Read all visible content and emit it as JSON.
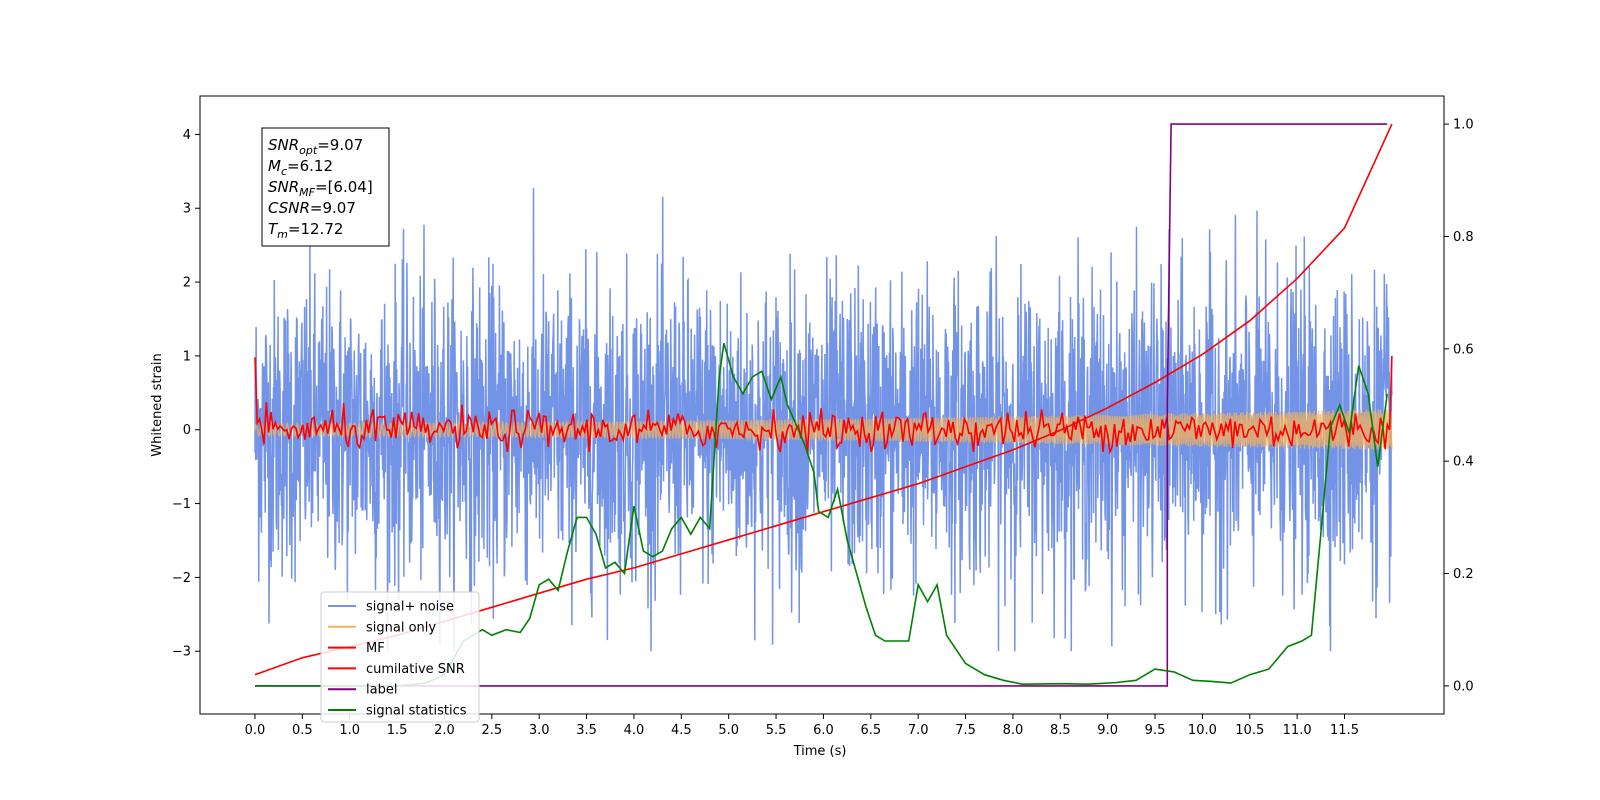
{
  "chart_data": {
    "type": "line",
    "xlabel": "Time (s)",
    "ylabel": "Whitened strain",
    "xlim": [
      -0.58,
      12.55
    ],
    "ylim": [
      -3.85,
      4.52
    ],
    "y2lim": [
      -0.05,
      1.05
    ],
    "grid": false,
    "legend_position": "lower-left",
    "x_ticks": [
      "0.0",
      "0.5",
      "1.0",
      "1.5",
      "2.0",
      "2.5",
      "3.0",
      "3.5",
      "4.0",
      "4.5",
      "5.0",
      "5.5",
      "6.0",
      "6.5",
      "7.0",
      "7.5",
      "8.0",
      "8.5",
      "9.0",
      "9.5",
      "10.0",
      "10.5",
      "11.0",
      "11.5"
    ],
    "y_ticks": [
      "4",
      "3",
      "2",
      "1",
      "0",
      "−1",
      "−2",
      "−3"
    ],
    "y2_ticks": [
      "1.0",
      "0.8",
      "0.6",
      "0.4",
      "0.2",
      "0.0"
    ],
    "annotation": {
      "lines": [
        {
          "base": "SNR",
          "sub": "opt",
          "value": "=9.07"
        },
        {
          "base": "M",
          "sub": "c",
          "value": "=6.12"
        },
        {
          "base": "SNR",
          "sub": "MF",
          "value": "=[6.04]"
        },
        {
          "base": "CSNR",
          "sub": "",
          "value": "=9.07"
        },
        {
          "base": "T",
          "sub": "m",
          "value": "=12.72"
        }
      ]
    },
    "series": [
      {
        "name": "signal+ noise",
        "color": "#7393e6",
        "axis": "left",
        "kind": "noise",
        "amplitude_range": [
          -3.0,
          4.15
        ],
        "duration": 12.0
      },
      {
        "name": "signal only",
        "color": "#f5b15a",
        "axis": "left",
        "kind": "chirp",
        "amplitude_start": 0.08,
        "amplitude_end": 0.28
      },
      {
        "name": "MF",
        "color": "#ff0000",
        "axis": "left",
        "kind": "mf",
        "start_value": 0.98,
        "end_value": 1.0,
        "range": [
          -0.3,
          0.5
        ]
      },
      {
        "name": "cumilative SNR",
        "color": "#ff0000",
        "axis": "right",
        "x": [
          0.0,
          0.5,
          1.0,
          1.5,
          2.0,
          2.5,
          3.0,
          3.5,
          4.0,
          4.5,
          5.0,
          5.5,
          6.0,
          6.5,
          7.0,
          7.5,
          8.0,
          8.5,
          9.0,
          9.5,
          10.0,
          10.5,
          11.0,
          11.5,
          12.0
        ],
        "values": [
          0.02,
          0.05,
          0.07,
          0.09,
          0.115,
          0.14,
          0.165,
          0.19,
          0.21,
          0.235,
          0.26,
          0.285,
          0.31,
          0.335,
          0.36,
          0.39,
          0.42,
          0.455,
          0.495,
          0.54,
          0.59,
          0.65,
          0.725,
          0.815,
          1.0
        ]
      },
      {
        "name": "label",
        "color": "#800080",
        "axis": "right",
        "x": [
          0.0,
          9.63,
          9.63,
          9.67,
          11.95
        ],
        "values": [
          0.0,
          0.0,
          0.5,
          1.0,
          1.0
        ]
      },
      {
        "name": "signal statistics",
        "color": "#008000",
        "axis": "right",
        "x": [
          0.0,
          1.5,
          1.8,
          2.0,
          2.2,
          2.4,
          2.5,
          2.65,
          2.8,
          2.9,
          3.0,
          3.1,
          3.2,
          3.3,
          3.4,
          3.5,
          3.6,
          3.7,
          3.8,
          3.9,
          4.0,
          4.1,
          4.2,
          4.3,
          4.4,
          4.5,
          4.6,
          4.7,
          4.8,
          4.9,
          4.95,
          5.05,
          5.15,
          5.25,
          5.35,
          5.45,
          5.55,
          5.62,
          5.7,
          5.8,
          5.9,
          5.95,
          6.05,
          6.15,
          6.25,
          6.35,
          6.45,
          6.55,
          6.65,
          6.8,
          6.9,
          7.0,
          7.1,
          7.2,
          7.3,
          7.5,
          7.7,
          7.9,
          8.1,
          8.5,
          8.8,
          9.1,
          9.3,
          9.5,
          9.7,
          9.9,
          10.1,
          10.3,
          10.5,
          10.7,
          10.9,
          11.05,
          11.15,
          11.25,
          11.35,
          11.45,
          11.55,
          11.65,
          11.75,
          11.85,
          11.95
        ],
        "values": [
          0.0,
          0.0,
          0.005,
          0.02,
          0.08,
          0.1,
          0.09,
          0.1,
          0.095,
          0.12,
          0.18,
          0.19,
          0.17,
          0.24,
          0.3,
          0.3,
          0.27,
          0.21,
          0.22,
          0.2,
          0.32,
          0.24,
          0.23,
          0.24,
          0.28,
          0.3,
          0.27,
          0.3,
          0.28,
          0.55,
          0.61,
          0.55,
          0.52,
          0.55,
          0.56,
          0.51,
          0.55,
          0.5,
          0.47,
          0.43,
          0.38,
          0.31,
          0.3,
          0.35,
          0.26,
          0.2,
          0.14,
          0.09,
          0.08,
          0.08,
          0.08,
          0.18,
          0.15,
          0.18,
          0.09,
          0.04,
          0.02,
          0.01,
          0.003,
          0.004,
          0.003,
          0.006,
          0.01,
          0.03,
          0.025,
          0.01,
          0.008,
          0.005,
          0.02,
          0.03,
          0.07,
          0.08,
          0.09,
          0.27,
          0.46,
          0.5,
          0.45,
          0.57,
          0.52,
          0.39,
          0.52
        ]
      }
    ]
  }
}
